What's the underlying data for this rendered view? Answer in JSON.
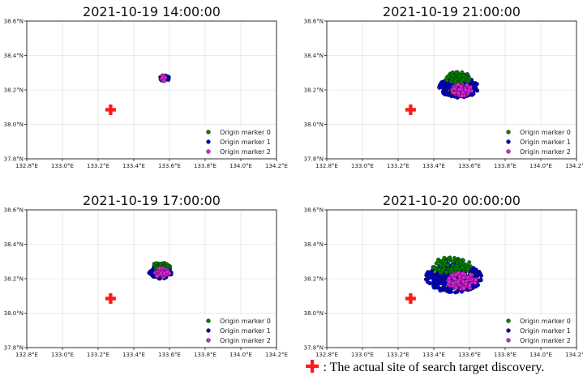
{
  "chart_data": [
    {
      "type": "scatter",
      "title": "2021-10-19 14:00:00",
      "xlim": [
        132.8,
        134.2
      ],
      "ylim": [
        37.8,
        38.6
      ],
      "x_ticks": [
        "132.8°E",
        "133.0°E",
        "133.2°E",
        "133.4°E",
        "133.6°E",
        "133.8°E",
        "134.0°E",
        "134.2°E"
      ],
      "y_ticks": [
        "37.8°N",
        "38.0°N",
        "38.2°N",
        "38.4°N",
        "38.6°N"
      ],
      "grid": true,
      "legend_position": "bottom-right",
      "legend": [
        "Origin marker 0",
        "Origin marker 1",
        "Origin marker 2"
      ],
      "target": {
        "x": 133.27,
        "y": 38.085
      },
      "series": [
        {
          "name": "Origin marker 0",
          "color": "#008000",
          "cluster": {
            "cx": 133.57,
            "cy": 38.272,
            "rx": 0.012,
            "ry": 0.012,
            "n": 12
          }
        },
        {
          "name": "Origin marker 1",
          "color": "#0000cc",
          "cluster": {
            "cx": 133.57,
            "cy": 38.268,
            "rx": 0.03,
            "ry": 0.018,
            "n": 30
          }
        },
        {
          "name": "Origin marker 2",
          "color": "#dd22dd",
          "cluster": {
            "cx": 133.565,
            "cy": 38.268,
            "rx": 0.012,
            "ry": 0.02,
            "n": 14
          }
        }
      ]
    },
    {
      "type": "scatter",
      "title": "2021-10-19 21:00:00",
      "xlim": [
        132.8,
        134.2
      ],
      "ylim": [
        37.8,
        38.6
      ],
      "x_ticks": [
        "132.8°E",
        "133.0°E",
        "133.2°E",
        "133.4°E",
        "133.6°E",
        "133.8°E",
        "134.0°E",
        "134.2°E"
      ],
      "y_ticks": [
        "37.8°N",
        "38.0°N",
        "38.2°N",
        "38.4°N",
        "38.6°N"
      ],
      "grid": true,
      "legend_position": "bottom-right",
      "legend": [
        "Origin marker 0",
        "Origin marker 1",
        "Origin marker 2"
      ],
      "target": {
        "x": 133.27,
        "y": 38.085
      },
      "series": [
        {
          "name": "Origin marker 0",
          "color": "#008000",
          "cluster": {
            "cx": 133.535,
            "cy": 38.27,
            "rx": 0.07,
            "ry": 0.035,
            "n": 70
          }
        },
        {
          "name": "Origin marker 1",
          "color": "#0000cc",
          "cluster": {
            "cx": 133.54,
            "cy": 38.215,
            "rx": 0.11,
            "ry": 0.06,
            "n": 220
          }
        },
        {
          "name": "Origin marker 2",
          "color": "#dd22dd",
          "cluster": {
            "cx": 133.555,
            "cy": 38.2,
            "rx": 0.06,
            "ry": 0.035,
            "n": 80
          }
        }
      ]
    },
    {
      "type": "scatter",
      "title": "2021-10-19 17:00:00",
      "xlim": [
        132.8,
        134.2
      ],
      "ylim": [
        37.8,
        38.6
      ],
      "x_ticks": [
        "132.8°E",
        "133.0°E",
        "133.2°E",
        "133.4°E",
        "133.6°E",
        "133.8°E",
        "134.0°E",
        "134.2°E"
      ],
      "y_ticks": [
        "37.8°N",
        "38.0°N",
        "38.2°N",
        "38.4°N",
        "38.6°N"
      ],
      "grid": true,
      "legend_position": "bottom-right",
      "legend": [
        "Origin marker 0",
        "Origin marker 1",
        "Origin marker 2"
      ],
      "target": {
        "x": 133.27,
        "y": 38.085
      },
      "series": [
        {
          "name": "Origin marker 0",
          "color": "#008000",
          "cluster": {
            "cx": 133.555,
            "cy": 38.275,
            "rx": 0.05,
            "ry": 0.02,
            "n": 40
          }
        },
        {
          "name": "Origin marker 1",
          "color": "#0000cc",
          "cluster": {
            "cx": 133.55,
            "cy": 38.24,
            "rx": 0.065,
            "ry": 0.04,
            "n": 110
          }
        },
        {
          "name": "Origin marker 2",
          "color": "#dd22dd",
          "cluster": {
            "cx": 133.56,
            "cy": 38.235,
            "rx": 0.04,
            "ry": 0.03,
            "n": 50
          }
        }
      ]
    },
    {
      "type": "scatter",
      "title": "2021-10-20 00:00:00",
      "xlim": [
        132.8,
        134.2
      ],
      "ylim": [
        37.8,
        38.6
      ],
      "x_ticks": [
        "132.8°E",
        "133.0°E",
        "133.2°E",
        "133.4°E",
        "133.6°E",
        "133.8°E",
        "134.0°E",
        "134.2°E"
      ],
      "y_ticks": [
        "37.8°N",
        "38.0°N",
        "38.2°N",
        "38.4°N",
        "38.6°N"
      ],
      "grid": true,
      "legend_position": "bottom-right",
      "legend": [
        "Origin marker 0",
        "Origin marker 1",
        "Origin marker 2"
      ],
      "target": {
        "x": 133.27,
        "y": 38.085
      },
      "series": [
        {
          "name": "Origin marker 0",
          "color": "#008000",
          "cluster": {
            "cx": 133.5,
            "cy": 38.275,
            "rx": 0.11,
            "ry": 0.05,
            "n": 110
          }
        },
        {
          "name": "Origin marker 1",
          "color": "#0000cc",
          "cluster": {
            "cx": 133.51,
            "cy": 38.205,
            "rx": 0.16,
            "ry": 0.085,
            "n": 320
          }
        },
        {
          "name": "Origin marker 2",
          "color": "#dd22dd",
          "cluster": {
            "cx": 133.56,
            "cy": 38.185,
            "rx": 0.085,
            "ry": 0.05,
            "n": 120
          }
        }
      ]
    }
  ],
  "caption": {
    "symbol": "✚",
    "text": ": The actual site of search target discovery.",
    "symbol_color": "#ff1a1a"
  }
}
